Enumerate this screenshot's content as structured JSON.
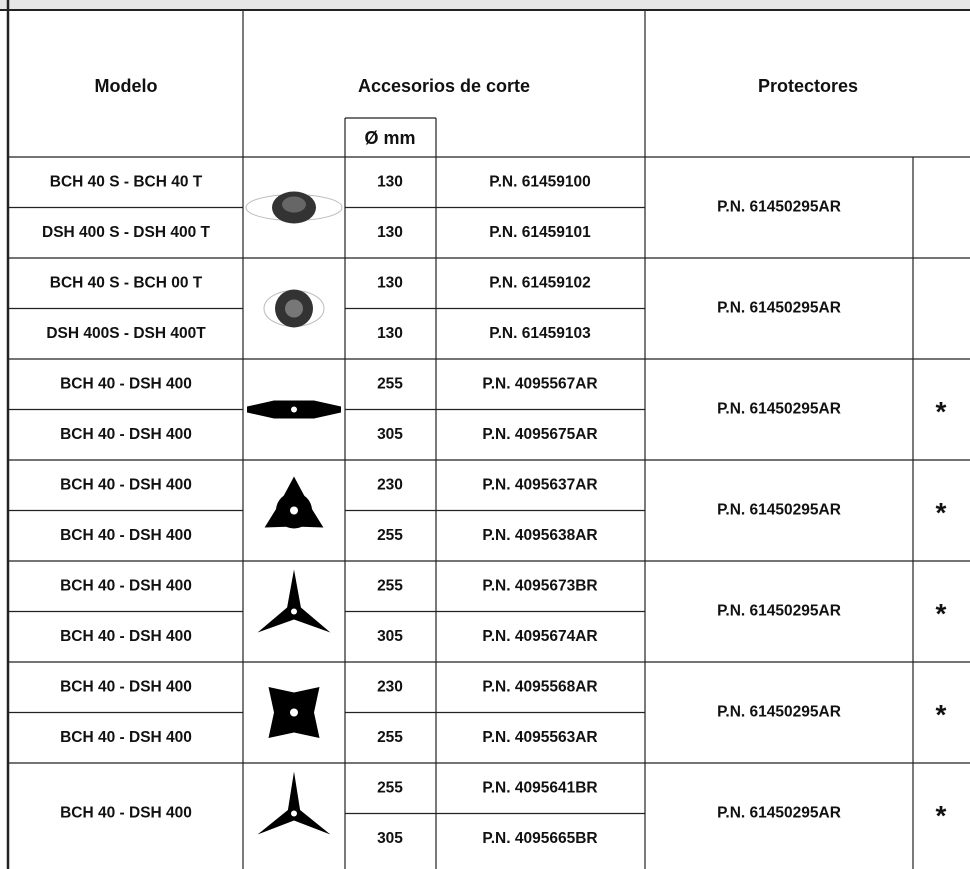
{
  "header": {
    "model": "Modelo",
    "accessories": "Accesorios de corte",
    "diameter": "Ø mm",
    "protectors": "Protectores"
  },
  "groups": [
    {
      "rows": [
        {
          "model": "BCH 40 S - BCH 40 T",
          "diameter": 130,
          "part_number": "P.N. 61459100"
        },
        {
          "model": "DSH 400 S - DSH 400 T",
          "diameter": 130,
          "part_number": "P.N. 61459101"
        }
      ],
      "protector": "P.N. 61450295AR"
    },
    {
      "rows": [
        {
          "model": "BCH 40 S - BCH 00 T",
          "diameter": 130,
          "part_number": "P.N. 61459102"
        },
        {
          "model": "DSH 400S - DSH 400T",
          "diameter": 130,
          "part_number": "P.N. 61459103"
        }
      ],
      "protector": "P.N. 61450295AR"
    },
    {
      "rows": [
        {
          "model": "BCH 40 - DSH 400",
          "diameter": 255,
          "part_number": "P.N. 4095567AR"
        },
        {
          "model": "BCH 40 - DSH 400",
          "diameter": 305,
          "part_number": "P.N. 4095675AR"
        }
      ],
      "protector": "P.N. 61450295AR",
      "note": "*"
    },
    {
      "rows": [
        {
          "model": "BCH 40 - DSH 400",
          "diameter": 230,
          "part_number": "P.N. 4095637AR"
        },
        {
          "model": "BCH 40 - DSH 400",
          "diameter": 255,
          "part_number": "P.N. 4095638AR"
        }
      ],
      "protector": "P.N. 61450295AR",
      "note": "*"
    },
    {
      "rows": [
        {
          "model": "BCH 40 - DSH 400",
          "diameter": 255,
          "part_number": "P.N. 4095673BR"
        },
        {
          "model": "BCH 40 - DSH 400",
          "diameter": 305,
          "part_number": "P.N. 4095674AR"
        }
      ],
      "protector": "P.N. 61450295AR",
      "note": "*"
    },
    {
      "rows": [
        {
          "model": "BCH 40 - DSH 400",
          "diameter": 230,
          "part_number": "P.N. 4095568AR"
        },
        {
          "model": "BCH 40 - DSH 400",
          "diameter": 255,
          "part_number": "P.N. 4095563AR"
        }
      ],
      "protector": "P.N. 61450295AR",
      "note": "*"
    },
    {
      "model": "BCH 40 - DSH 400",
      "rows": [
        {
          "diameter": 255,
          "part_number": "P.N. 4095641BR"
        },
        {
          "diameter": 305,
          "part_number": "P.N. 4095665BR"
        }
      ],
      "protector": "P.N. 61450295AR",
      "note": "*"
    }
  ]
}
